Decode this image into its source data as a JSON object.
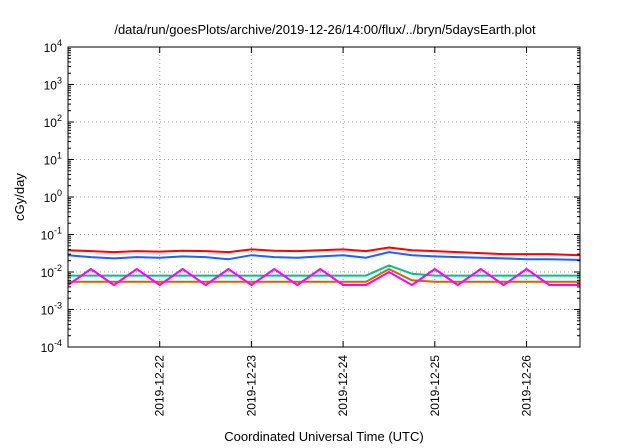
{
  "chart_data": {
    "type": "line",
    "title": "/data/run/goesPlots/archive/2019-12-26/14:00/flux/../bryn/5daysEarth.plot",
    "xlabel": "Coordinated Universal Time (UTC)",
    "ylabel": "cGy/day",
    "yscale": "log",
    "ylim": [
      0.0001,
      10000
    ],
    "xlim": [
      "2019-12-21T00:00",
      "2019-12-26T14:00"
    ],
    "grid": true,
    "legend": "none",
    "y_ticks": [
      {
        "exp": "-4",
        "value": 0.0001
      },
      {
        "exp": "-3",
        "value": 0.001
      },
      {
        "exp": "-2",
        "value": 0.01
      },
      {
        "exp": "-1",
        "value": 0.1
      },
      {
        "exp": "0",
        "value": 1
      },
      {
        "exp": "1",
        "value": 10
      },
      {
        "exp": "2",
        "value": 100
      },
      {
        "exp": "3",
        "value": 1000
      },
      {
        "exp": "4",
        "value": 10000
      }
    ],
    "y_tick_base": "10",
    "x_ticks": [
      "2019-12-22",
      "2019-12-23",
      "2019-12-24",
      "2019-12-25",
      "2019-12-26"
    ],
    "series": [
      {
        "color": "#ff0000",
        "x": [
          "2019-12-21T00:00",
          "2019-12-21T06:00",
          "2019-12-21T12:00",
          "2019-12-21T18:00",
          "2019-12-22T00:00",
          "2019-12-22T06:00",
          "2019-12-22T12:00",
          "2019-12-22T18:00",
          "2019-12-23T00:00",
          "2019-12-23T06:00",
          "2019-12-23T12:00",
          "2019-12-23T18:00",
          "2019-12-24T00:00",
          "2019-12-24T06:00",
          "2019-12-24T12:00",
          "2019-12-24T18:00",
          "2019-12-25T00:00",
          "2019-12-25T06:00",
          "2019-12-25T12:00",
          "2019-12-25T18:00",
          "2019-12-26T00:00",
          "2019-12-26T06:00",
          "2019-12-26T14:00"
        ],
        "y": [
          0.038,
          0.036,
          0.034,
          0.036,
          0.035,
          0.037,
          0.036,
          0.034,
          0.04,
          0.037,
          0.036,
          0.038,
          0.04,
          0.036,
          0.045,
          0.038,
          0.036,
          0.034,
          0.032,
          0.03,
          0.03,
          0.03,
          0.028
        ]
      },
      {
        "color": "#1f5fff",
        "x": [
          "2019-12-21T00:00",
          "2019-12-21T06:00",
          "2019-12-21T12:00",
          "2019-12-21T18:00",
          "2019-12-22T00:00",
          "2019-12-22T06:00",
          "2019-12-22T12:00",
          "2019-12-22T18:00",
          "2019-12-23T00:00",
          "2019-12-23T06:00",
          "2019-12-23T12:00",
          "2019-12-23T18:00",
          "2019-12-24T00:00",
          "2019-12-24T06:00",
          "2019-12-24T12:00",
          "2019-12-24T18:00",
          "2019-12-25T00:00",
          "2019-12-25T06:00",
          "2019-12-25T12:00",
          "2019-12-25T18:00",
          "2019-12-26T00:00",
          "2019-12-26T06:00",
          "2019-12-26T14:00"
        ],
        "y": [
          0.028,
          0.025,
          0.023,
          0.025,
          0.024,
          0.026,
          0.025,
          0.022,
          0.028,
          0.025,
          0.024,
          0.026,
          0.028,
          0.024,
          0.034,
          0.028,
          0.026,
          0.025,
          0.024,
          0.023,
          0.022,
          0.022,
          0.021
        ]
      },
      {
        "color": "#00c08a",
        "x": [
          "2019-12-21T00:00",
          "2019-12-21T06:00",
          "2019-12-21T12:00",
          "2019-12-21T18:00",
          "2019-12-22T00:00",
          "2019-12-22T06:00",
          "2019-12-22T12:00",
          "2019-12-22T18:00",
          "2019-12-23T00:00",
          "2019-12-23T06:00",
          "2019-12-23T12:00",
          "2019-12-23T18:00",
          "2019-12-24T00:00",
          "2019-12-24T06:00",
          "2019-12-24T12:00",
          "2019-12-24T18:00",
          "2019-12-25T00:00",
          "2019-12-25T06:00",
          "2019-12-25T12:00",
          "2019-12-25T18:00",
          "2019-12-26T00:00",
          "2019-12-26T06:00",
          "2019-12-26T14:00"
        ],
        "y": [
          0.008,
          0.008,
          0.008,
          0.008,
          0.008,
          0.008,
          0.008,
          0.008,
          0.008,
          0.008,
          0.008,
          0.008,
          0.008,
          0.008,
          0.015,
          0.009,
          0.008,
          0.008,
          0.008,
          0.008,
          0.008,
          0.008,
          0.008
        ]
      },
      {
        "color": "#cc6600",
        "x": [
          "2019-12-21T00:00",
          "2019-12-21T06:00",
          "2019-12-21T12:00",
          "2019-12-21T18:00",
          "2019-12-22T00:00",
          "2019-12-22T06:00",
          "2019-12-22T12:00",
          "2019-12-22T18:00",
          "2019-12-23T00:00",
          "2019-12-23T06:00",
          "2019-12-23T12:00",
          "2019-12-23T18:00",
          "2019-12-24T00:00",
          "2019-12-24T06:00",
          "2019-12-24T12:00",
          "2019-12-24T18:00",
          "2019-12-25T00:00",
          "2019-12-25T06:00",
          "2019-12-25T12:00",
          "2019-12-25T18:00",
          "2019-12-26T00:00",
          "2019-12-26T06:00",
          "2019-12-26T14:00"
        ],
        "y": [
          0.0055,
          0.0055,
          0.0055,
          0.0055,
          0.0055,
          0.0055,
          0.0055,
          0.0055,
          0.0055,
          0.0055,
          0.0055,
          0.0055,
          0.0055,
          0.0055,
          0.012,
          0.006,
          0.0055,
          0.0055,
          0.0055,
          0.0055,
          0.0055,
          0.0055,
          0.0055
        ]
      },
      {
        "color": "#ff00ff",
        "x": [
          "2019-12-21T00:00",
          "2019-12-21T06:00",
          "2019-12-21T12:00",
          "2019-12-21T18:00",
          "2019-12-22T00:00",
          "2019-12-22T06:00",
          "2019-12-22T12:00",
          "2019-12-22T18:00",
          "2019-12-23T00:00",
          "2019-12-23T06:00",
          "2019-12-23T12:00",
          "2019-12-23T18:00",
          "2019-12-24T00:00",
          "2019-12-24T06:00",
          "2019-12-24T12:00",
          "2019-12-24T18:00",
          "2019-12-25T00:00",
          "2019-12-25T06:00",
          "2019-12-25T12:00",
          "2019-12-25T18:00",
          "2019-12-26T00:00",
          "2019-12-26T06:00",
          "2019-12-26T14:00"
        ],
        "y": [
          0.0045,
          0.012,
          0.0045,
          0.012,
          0.0045,
          0.012,
          0.0045,
          0.012,
          0.0045,
          0.012,
          0.0045,
          0.012,
          0.0045,
          0.0045,
          0.01,
          0.0045,
          0.012,
          0.0045,
          0.012,
          0.0045,
          0.012,
          0.0045,
          0.0045
        ]
      }
    ]
  }
}
